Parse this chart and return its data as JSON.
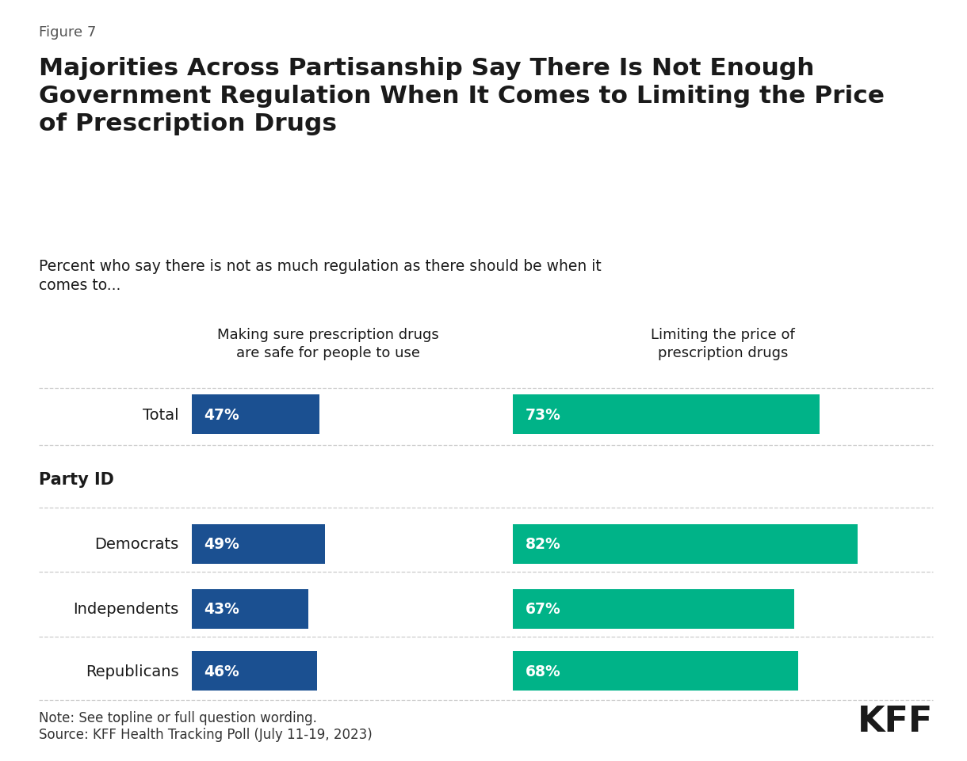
{
  "figure_label": "Figure 7",
  "title_line1": "Majorities Across Partisanship Say There Is Not Enough",
  "title_line2": "Government Regulation When It Comes to Limiting the Price",
  "title_line3": "of Prescription Drugs",
  "subtitle_line1": "Percent who say there is not as much regulation as there should be when it",
  "subtitle_line2": "comes to...",
  "col1_header_line1": "Making sure prescription drugs",
  "col1_header_line2": "are safe for people to use",
  "col2_header_line1": "Limiting the price of",
  "col2_header_line2": "prescription drugs",
  "categories": [
    "Total",
    "Party ID",
    "Democrats",
    "Independents",
    "Republicans"
  ],
  "col1_values": [
    47,
    null,
    49,
    43,
    46
  ],
  "col2_values": [
    73,
    null,
    82,
    67,
    68
  ],
  "col1_color": "#1B5091",
  "col2_color": "#00B388",
  "note": "Note: See topline or full question wording.",
  "source": "Source: KFF Health Tracking Poll (July 11-19, 2023)",
  "background_color": "#FFFFFF",
  "text_color": "#1a1a1a",
  "separator_color": "#CCCCCC",
  "kff_logo": "KFF"
}
